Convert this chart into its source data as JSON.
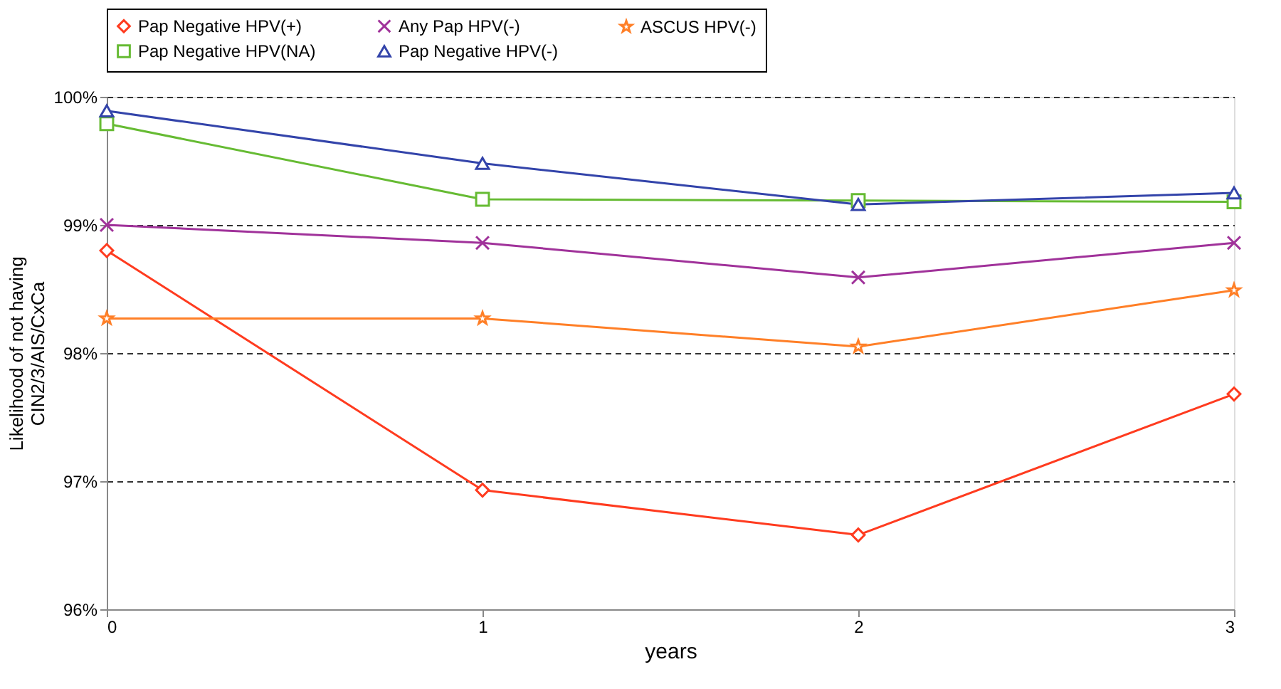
{
  "chart_data": {
    "type": "line",
    "xlabel": "years",
    "ylabel": "Likelihood of not having\nCIN2/3/AIS/CxCa",
    "x": [
      0,
      1,
      2,
      3
    ],
    "xlim": [
      0,
      3
    ],
    "xticks": [
      0,
      1,
      2,
      3
    ],
    "ylim": [
      96,
      100
    ],
    "yticks": [
      {
        "value": 96,
        "label": "96%"
      },
      {
        "value": 97,
        "label": "97%"
      },
      {
        "value": 98,
        "label": "98%"
      },
      {
        "value": 99,
        "label": "99%"
      },
      {
        "value": 100,
        "label": "100%"
      }
    ],
    "grid": "y",
    "line_style": "solid",
    "legend": "top",
    "series": [
      {
        "name": "Pap Negative HPV(+)",
        "color": "#ff3b1f",
        "marker": "diamond",
        "values": [
          98.8,
          96.93,
          96.58,
          97.68
        ]
      },
      {
        "name": "Any Pap HPV(-)",
        "color": "#a0329a",
        "marker": "cross",
        "values": [
          99.0,
          98.86,
          98.59,
          98.86
        ]
      },
      {
        "name": "ASCUS HPV(-)",
        "color": "#ff7f27",
        "marker": "star",
        "values": [
          98.27,
          98.27,
          98.05,
          98.49
        ]
      },
      {
        "name": "Pap Negative HPV(NA)",
        "color": "#66bb33",
        "marker": "square",
        "values": [
          99.79,
          99.2,
          99.19,
          99.18
        ]
      },
      {
        "name": "Pap Negative HPV(-)",
        "color": "#3344aa",
        "marker": "triangle",
        "values": [
          99.89,
          99.48,
          99.16,
          99.25
        ]
      }
    ]
  }
}
